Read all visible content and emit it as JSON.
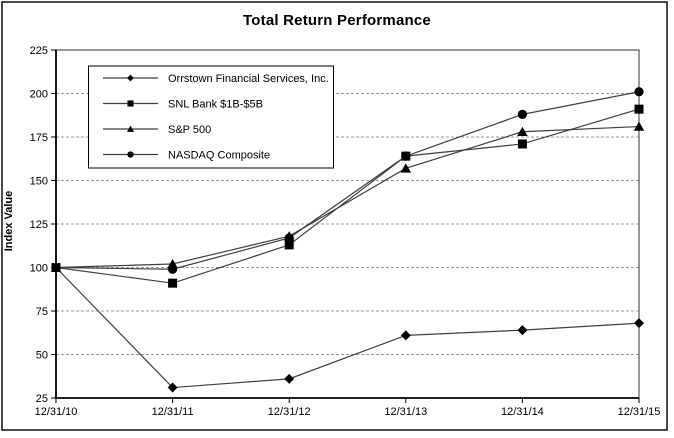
{
  "chart_data": {
    "type": "line",
    "title": "Total Return Performance",
    "xlabel": "",
    "ylabel": "Index Value",
    "categories": [
      "12/31/10",
      "12/31/11",
      "12/31/12",
      "12/31/13",
      "12/31/14",
      "12/31/15"
    ],
    "series": [
      {
        "name": "Orrstown Financial Services, Inc.",
        "marker": "diamond",
        "values": [
          100,
          31,
          36,
          61,
          64,
          68
        ]
      },
      {
        "name": "SNL Bank $1B-$5B",
        "marker": "square",
        "values": [
          100,
          91,
          113,
          164,
          171,
          191
        ]
      },
      {
        "name": "S&P 500",
        "marker": "triangle",
        "values": [
          100,
          102,
          118,
          157,
          178,
          181
        ]
      },
      {
        "name": "NASDAQ Composite",
        "marker": "circle",
        "values": [
          100,
          99,
          117,
          164,
          188,
          201
        ]
      }
    ],
    "ylim": [
      25,
      225
    ],
    "yticks": [
      25,
      50,
      75,
      100,
      125,
      150,
      175,
      200,
      225
    ],
    "grid": "horizontal dashed gridlines at 50-200",
    "legend_position": "inside top-left",
    "colors": {
      "series": "#000000",
      "line": "#404040",
      "gridline": "#999999",
      "border": "#000000",
      "background": "#ffffff"
    }
  }
}
